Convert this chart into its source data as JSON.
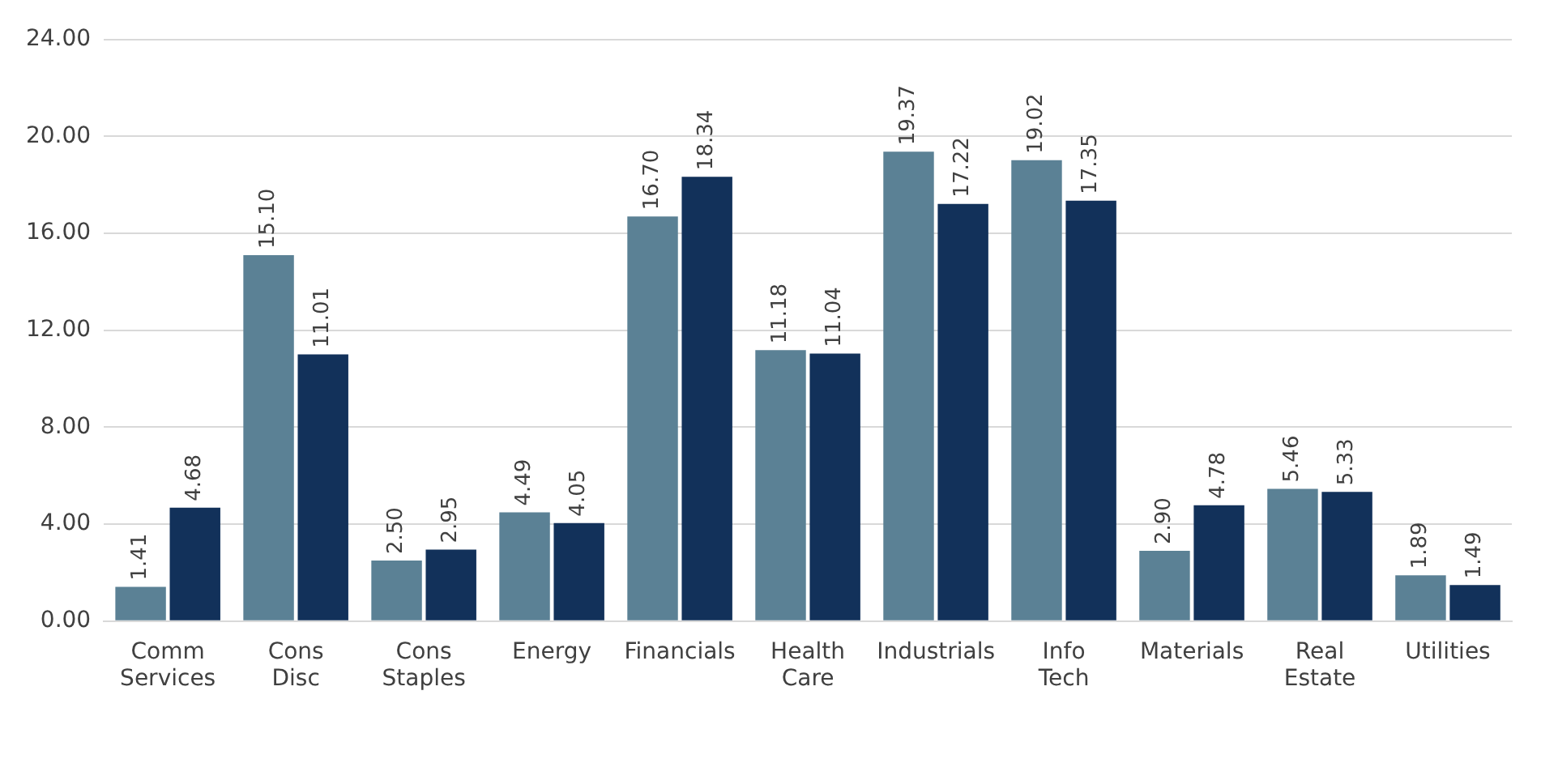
{
  "chart_data": {
    "type": "bar",
    "categories": [
      "Comm Services",
      "Cons Disc",
      "Cons Staples",
      "Energy",
      "Financials",
      "Health Care",
      "Industrials",
      "Info Tech",
      "Materials",
      "Real Estate",
      "Utilities"
    ],
    "series": [
      {
        "color": "#5b8195",
        "values": [
          1.41,
          15.1,
          2.5,
          4.49,
          16.7,
          11.18,
          19.37,
          19.02,
          2.9,
          5.46,
          1.89
        ],
        "value_labels": [
          "1.41",
          "15.10",
          "2.50",
          "4.49",
          "16.70",
          "11.18",
          "19.37",
          "19.02",
          "2.90",
          "5.46",
          "1.89"
        ]
      },
      {
        "color": "#12315a",
        "values": [
          4.68,
          11.01,
          2.95,
          4.05,
          18.34,
          11.04,
          17.22,
          17.35,
          4.78,
          5.33,
          1.49
        ],
        "value_labels": [
          "4.68",
          "11.01",
          "2.95",
          "4.05",
          "18.34",
          "11.04",
          "17.22",
          "17.35",
          "4.78",
          "5.33",
          "1.49"
        ]
      }
    ],
    "ylim": [
      0,
      24
    ],
    "yticks": [
      {
        "value": 0,
        "label": "0.00"
      },
      {
        "value": 4,
        "label": "4.00"
      },
      {
        "value": 8,
        "label": "8.00"
      },
      {
        "value": 12,
        "label": "12.00"
      },
      {
        "value": 16,
        "label": "16.00"
      },
      {
        "value": 20,
        "label": "20.00"
      },
      {
        "value": 24,
        "label": "24.00"
      }
    ],
    "grid": "y",
    "legend": false
  }
}
